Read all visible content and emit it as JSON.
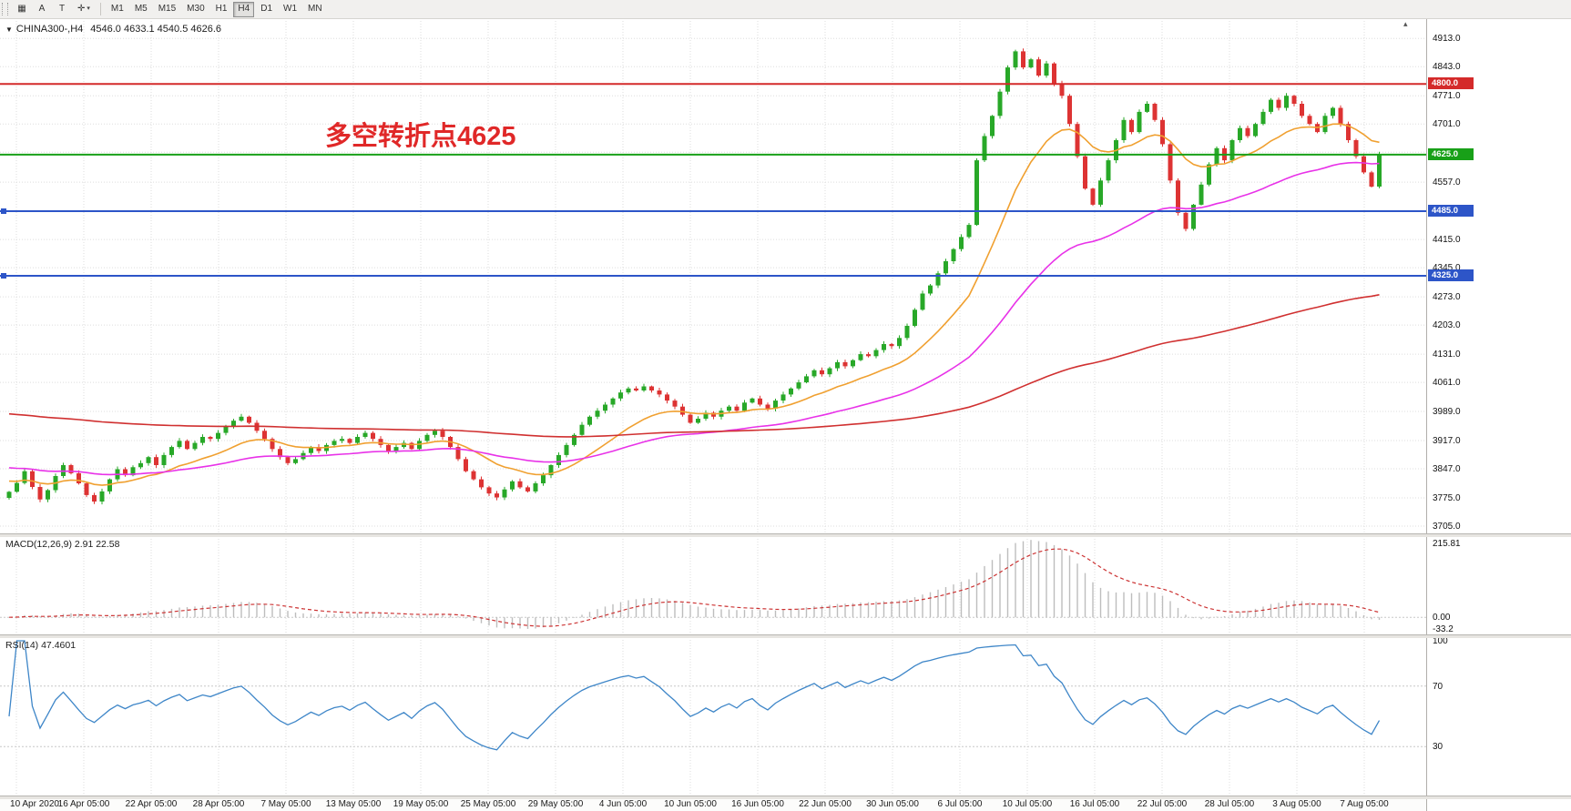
{
  "toolbar": {
    "icons": [
      {
        "name": "chart-window-icon",
        "glyph": "▦"
      },
      {
        "name": "label-a-icon",
        "glyph": "A"
      },
      {
        "name": "text-box-icon",
        "glyph": "T"
      },
      {
        "name": "cursor-mode-icon",
        "glyph": "✛",
        "caret": "▾"
      }
    ],
    "timeframes": [
      "M1",
      "M5",
      "M15",
      "M30",
      "H1",
      "H4",
      "D1",
      "W1",
      "MN"
    ],
    "active_timeframe": "H4"
  },
  "chart_data": {
    "type": "candlestick",
    "symbol": "CHINA300-,H4",
    "ohlc_display": "4546.0 4633.1 4540.5 4626.6",
    "header_marker": "▼",
    "shift_marker": "▴",
    "annotation": "多空转折点4625",
    "up_color": "#28a828",
    "down_color": "#dd3333",
    "price_range": {
      "min": 3687,
      "max": 4963
    },
    "price_axis_labels": [
      "4913.0",
      "4843.0",
      "4771.0",
      "4701.0",
      "4631.0",
      "4557.0",
      "4485.0",
      "4415.0",
      "4345.0",
      "4273.0",
      "4203.0",
      "4131.0",
      "4061.0",
      "3989.0",
      "3917.0",
      "3847.0",
      "3775.0",
      "3705.0"
    ],
    "hlines": [
      {
        "price": 4800.0,
        "label": "4800.0",
        "color": "#d42a2a",
        "handle": false
      },
      {
        "price": 4625.0,
        "label": "4625.0",
        "color": "#18a018",
        "handle": false
      },
      {
        "price": 4485.0,
        "label": "4485.0",
        "color": "#2d55c8",
        "handle": true
      },
      {
        "price": 4325.0,
        "label": "4325.0",
        "color": "#2d55c8",
        "handle": true
      }
    ],
    "first_open": 3775,
    "closes": [
      3790,
      3812,
      3841,
      3802,
      3771,
      3794,
      3829,
      3856,
      3836,
      3811,
      3782,
      3766,
      3791,
      3821,
      3846,
      3831,
      3851,
      3861,
      3876,
      3856,
      3881,
      3901,
      3916,
      3896,
      3911,
      3926,
      3921,
      3936,
      3951,
      3966,
      3976,
      3961,
      3941,
      3921,
      3896,
      3876,
      3861,
      3871,
      3886,
      3901,
      3891,
      3906,
      3916,
      3921,
      3911,
      3926,
      3936,
      3921,
      3906,
      3891,
      3901,
      3911,
      3896,
      3916,
      3931,
      3941,
      3926,
      3901,
      3871,
      3841,
      3821,
      3801,
      3786,
      3776,
      3796,
      3816,
      3801,
      3791,
      3811,
      3831,
      3856,
      3881,
      3906,
      3931,
      3956,
      3976,
      3991,
      4006,
      4021,
      4036,
      4046,
      4041,
      4051,
      4041,
      4031,
      4016,
      4001,
      3981,
      3961,
      3971,
      3986,
      3976,
      3991,
      4001,
      3991,
      4011,
      4021,
      4006,
      3996,
      4016,
      4031,
      4046,
      4061,
      4076,
      4091,
      4081,
      4096,
      4111,
      4101,
      4116,
      4131,
      4126,
      4141,
      4156,
      4151,
      4171,
      4201,
      4241,
      4281,
      4301,
      4331,
      4361,
      4391,
      4421,
      4451,
      4611,
      4671,
      4721,
      4781,
      4841,
      4881,
      4841,
      4861,
      4821,
      4851,
      4801,
      4771,
      4701,
      4621,
      4541,
      4501,
      4561,
      4611,
      4661,
      4711,
      4681,
      4731,
      4751,
      4711,
      4651,
      4561,
      4481,
      4441,
      4501,
      4551,
      4601,
      4641,
      4611,
      4661,
      4691,
      4671,
      4701,
      4731,
      4761,
      4741,
      4771,
      4751,
      4721,
      4701,
      4681,
      4721,
      4741,
      4701,
      4661,
      4621,
      4581,
      4546,
      4626.6
    ],
    "moving_averages": [
      {
        "name": "ma-fast",
        "period": 16,
        "seed": 3820,
        "color": "#f0a030"
      },
      {
        "name": "ma-mid",
        "period": 50,
        "seed": 3852,
        "color": "#e832e8"
      },
      {
        "name": "ma-slow",
        "period": 200,
        "seed": 3985,
        "color": "#d03030"
      }
    ],
    "macd": {
      "label": "MACD(12,26,9) 2.91 22.58",
      "fast": 12,
      "slow": 26,
      "signal": 9,
      "axis_labels": [
        "215.81",
        "0.00",
        "-33.2"
      ],
      "hist_color": "#bdbdbd",
      "signal_color": "#cc3333"
    },
    "rsi": {
      "label": "RSI(14) 47.4601",
      "period": 14,
      "levels": [
        70,
        30
      ],
      "axis_labels": [
        "100",
        "70",
        "30"
      ],
      "color": "#3e86c8"
    },
    "time_labels": [
      "10 Apr 2020",
      "16 Apr 05:00",
      "22 Apr 05:00",
      "28 Apr 05:00",
      "7 May 05:00",
      "13 May 05:00",
      "19 May 05:00",
      "25 May 05:00",
      "29 May 05:00",
      "4 Jun 05:00",
      "10 Jun 05:00",
      "16 Jun 05:00",
      "22 Jun 05:00",
      "30 Jun 05:00",
      "6 Jul 05:00",
      "10 Jul 05:00",
      "16 Jul 05:00",
      "22 Jul 05:00",
      "28 Jul 05:00",
      "3 Aug 05:00",
      "7 Aug 05:00"
    ]
  }
}
